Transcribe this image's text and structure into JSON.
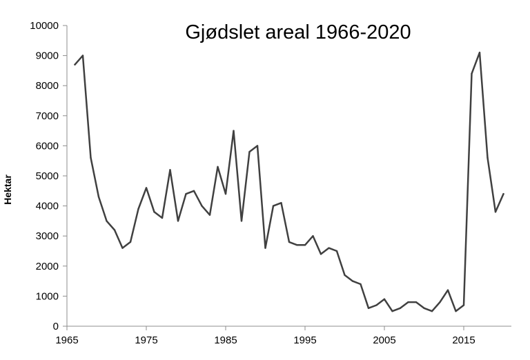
{
  "chart_data": {
    "type": "line",
    "title": "Gjødslet areal 1966-2020",
    "xlabel": "",
    "ylabel": "Hektar",
    "xlim": [
      1965,
      2021
    ],
    "ylim": [
      0,
      10000
    ],
    "x_ticks": [
      1965,
      1975,
      1985,
      1995,
      2005,
      2015
    ],
    "y_ticks": [
      0,
      1000,
      2000,
      3000,
      4000,
      5000,
      6000,
      7000,
      8000,
      9000,
      10000
    ],
    "grid": false,
    "legend": "none",
    "series": [
      {
        "color": "#404040",
        "x": [
          1966,
          1967,
          1968,
          1969,
          1970,
          1971,
          1972,
          1973,
          1974,
          1975,
          1976,
          1977,
          1978,
          1979,
          1980,
          1981,
          1982,
          1983,
          1984,
          1985,
          1986,
          1987,
          1988,
          1989,
          1990,
          1991,
          1992,
          1993,
          1994,
          1995,
          1996,
          1997,
          1998,
          1999,
          2000,
          2001,
          2002,
          2003,
          2004,
          2005,
          2006,
          2007,
          2008,
          2009,
          2010,
          2011,
          2012,
          2013,
          2014,
          2015,
          2016,
          2017,
          2018,
          2019,
          2020
        ],
        "values": [
          8700,
          9000,
          5600,
          4300,
          3500,
          3200,
          2600,
          2800,
          3900,
          4600,
          3800,
          3600,
          5200,
          3500,
          4400,
          4500,
          4000,
          3700,
          5300,
          4400,
          6500,
          3500,
          5800,
          6000,
          2600,
          4000,
          4100,
          2800,
          2700,
          2700,
          3000,
          2400,
          2600,
          2500,
          1700,
          1500,
          1400,
          600,
          700,
          900,
          500,
          600,
          800,
          800,
          600,
          500,
          800,
          1200,
          500,
          700,
          8400,
          9100,
          5600,
          3800,
          4400
        ]
      }
    ]
  }
}
